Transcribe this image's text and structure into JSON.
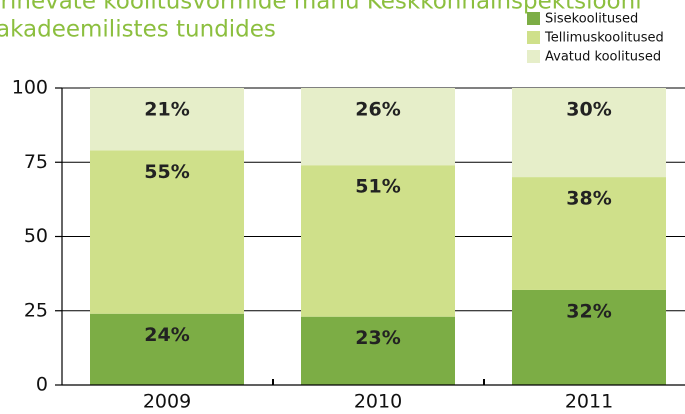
{
  "chart_data": {
    "type": "stacked_bar",
    "title": [
      "Erinevate koolitusvormide mahu Keskkonnainspektsiooni",
      "akadeemilistes tundides"
    ],
    "categories": [
      "2009",
      "2010",
      "2011"
    ],
    "series": [
      {
        "name": "Sisekoolitused",
        "color": "#7cad45",
        "values": [
          24,
          23,
          32
        ],
        "value_labels": [
          "24%",
          "23%",
          "32%"
        ]
      },
      {
        "name": "Tellimuskoolitused",
        "color": "#cfe08a",
        "values": [
          55,
          51,
          38
        ],
        "value_labels": [
          "55%",
          "51%",
          "38%"
        ]
      },
      {
        "name": "Avatud koolitused",
        "color": "#e6eec9",
        "values": [
          21,
          26,
          30
        ],
        "value_labels": [
          "21%",
          "26%",
          "30%"
        ]
      }
    ],
    "ylim": [
      0,
      100
    ],
    "yticks": [
      0,
      25,
      50,
      75,
      100
    ],
    "grid": true
  }
}
